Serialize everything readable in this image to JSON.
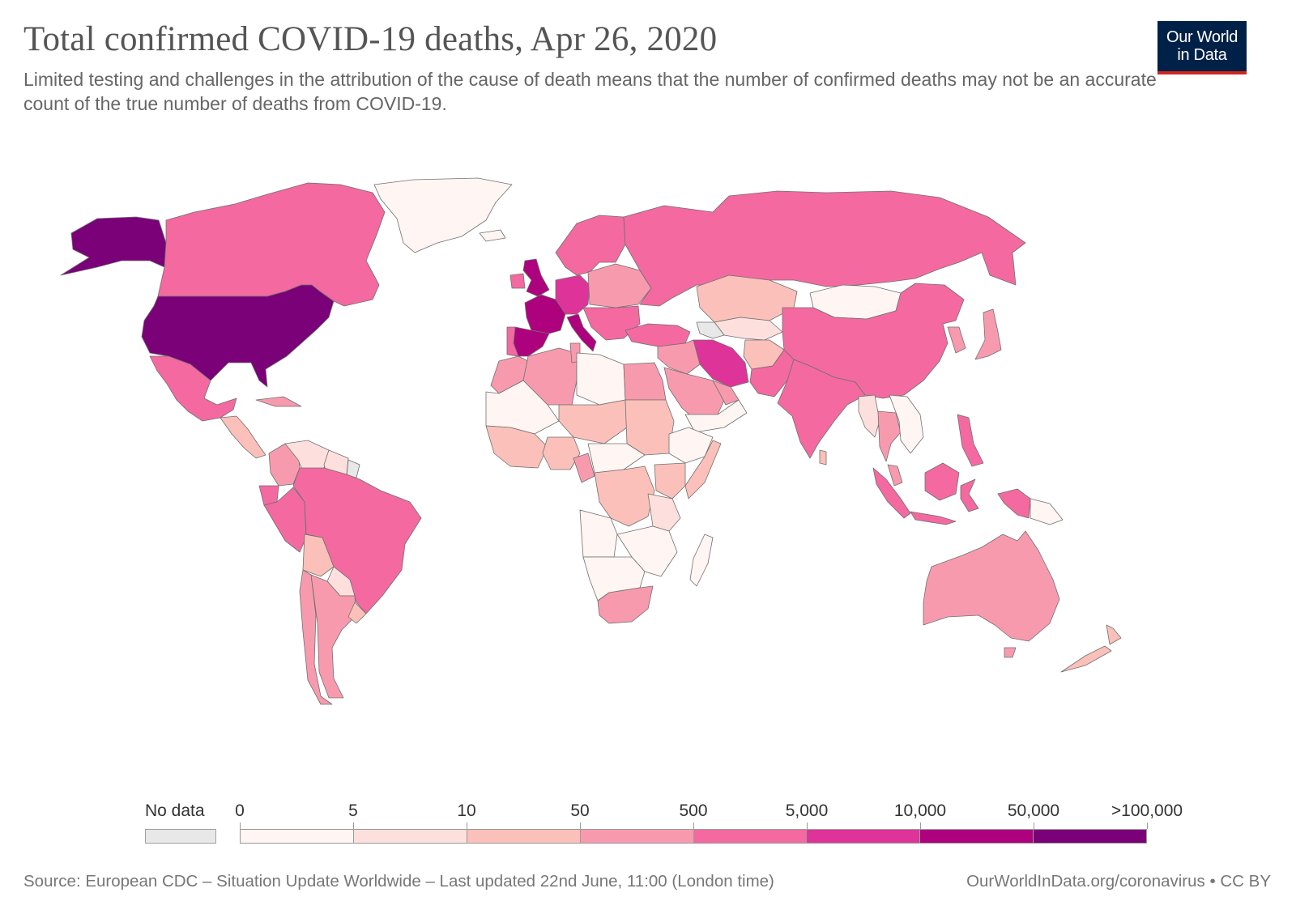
{
  "header": {
    "title": "Total confirmed COVID-19 deaths, Apr 26, 2020",
    "subtitle": "Limited testing and challenges in the attribution of the cause of death means that the number of confirmed deaths may not be an accurate count of the true number of deaths from COVID-19.",
    "logo_line1": "Our World",
    "logo_line2": "in Data"
  },
  "legend": {
    "no_data_label": "No data",
    "no_data_color": "#e8e8e8",
    "ticks": [
      "0",
      "5",
      "10",
      "50",
      "500",
      "5,000",
      "10,000",
      "50,000",
      ">100,000"
    ],
    "bins": [
      {
        "color": "#fff5f2"
      },
      {
        "color": "#fde0dd"
      },
      {
        "color": "#fbc0b9"
      },
      {
        "color": "#f89aae"
      },
      {
        "color": "#f369a0"
      },
      {
        "color": "#de3499"
      },
      {
        "color": "#ae017e"
      },
      {
        "color": "#7a0177"
      }
    ]
  },
  "footer": {
    "source": "Source: European CDC – Situation Update Worldwide – Last updated 22nd June, 11:00 (London time)",
    "credit": "OurWorldInData.org/coronavirus • CC BY"
  },
  "map": {
    "regions": [
      {
        "name": "alaska",
        "bin": 7
      },
      {
        "name": "canada",
        "bin": 4
      },
      {
        "name": "greenland",
        "bin": 0
      },
      {
        "name": "usa",
        "bin": 7
      },
      {
        "name": "mexico",
        "bin": 4
      },
      {
        "name": "central-america",
        "bin": 2
      },
      {
        "name": "cuba",
        "bin": 3
      },
      {
        "name": "colombia",
        "bin": 3
      },
      {
        "name": "venezuela",
        "bin": 1
      },
      {
        "name": "guyana-suriname",
        "bin": 1
      },
      {
        "name": "french-guiana",
        "bin": -1
      },
      {
        "name": "ecuador",
        "bin": 4
      },
      {
        "name": "peru",
        "bin": 4
      },
      {
        "name": "brazil",
        "bin": 4
      },
      {
        "name": "bolivia",
        "bin": 2
      },
      {
        "name": "paraguay",
        "bin": 1
      },
      {
        "name": "chile",
        "bin": 3
      },
      {
        "name": "argentina",
        "bin": 3
      },
      {
        "name": "uruguay",
        "bin": 2
      },
      {
        "name": "iceland",
        "bin": 0
      },
      {
        "name": "uk",
        "bin": 6
      },
      {
        "name": "ireland",
        "bin": 4
      },
      {
        "name": "scandinavia",
        "bin": 4
      },
      {
        "name": "france",
        "bin": 6
      },
      {
        "name": "spain",
        "bin": 6
      },
      {
        "name": "portugal",
        "bin": 4
      },
      {
        "name": "italy",
        "bin": 6
      },
      {
        "name": "germany-benelux",
        "bin": 5
      },
      {
        "name": "central-eastern-europe",
        "bin": 3
      },
      {
        "name": "balkans",
        "bin": 4
      },
      {
        "name": "russia",
        "bin": 4
      },
      {
        "name": "turkey",
        "bin": 4
      },
      {
        "name": "kazakhstan",
        "bin": 2
      },
      {
        "name": "central-asia",
        "bin": 1
      },
      {
        "name": "caucasus",
        "bin": -1
      },
      {
        "name": "iran",
        "bin": 5
      },
      {
        "name": "iraq-syria",
        "bin": 3
      },
      {
        "name": "saudi-arabia",
        "bin": 3
      },
      {
        "name": "gulf",
        "bin": 3
      },
      {
        "name": "yemen-oman",
        "bin": 0
      },
      {
        "name": "afghanistan",
        "bin": 2
      },
      {
        "name": "pakistan",
        "bin": 4
      },
      {
        "name": "india",
        "bin": 4
      },
      {
        "name": "sri-lanka",
        "bin": 2
      },
      {
        "name": "mongolia",
        "bin": 0
      },
      {
        "name": "china",
        "bin": 4
      },
      {
        "name": "korea",
        "bin": 3
      },
      {
        "name": "japan",
        "bin": 3
      },
      {
        "name": "myanmar",
        "bin": 1
      },
      {
        "name": "thailand",
        "bin": 3
      },
      {
        "name": "indochina",
        "bin": 0
      },
      {
        "name": "malaysia",
        "bin": 3
      },
      {
        "name": "philippines",
        "bin": 4
      },
      {
        "name": "sumatra",
        "bin": 4
      },
      {
        "name": "java",
        "bin": 4
      },
      {
        "name": "borneo",
        "bin": 4
      },
      {
        "name": "sulawesi",
        "bin": 4
      },
      {
        "name": "new-guinea",
        "bin": 4
      },
      {
        "name": "papua-new-guinea",
        "bin": 0
      },
      {
        "name": "australia",
        "bin": 3
      },
      {
        "name": "tasmania",
        "bin": 3
      },
      {
        "name": "new-zealand-north",
        "bin": 2
      },
      {
        "name": "new-zealand-south",
        "bin": 2
      },
      {
        "name": "morocco",
        "bin": 3
      },
      {
        "name": "algeria",
        "bin": 3
      },
      {
        "name": "tunisia",
        "bin": 3
      },
      {
        "name": "libya",
        "bin": 0
      },
      {
        "name": "egypt",
        "bin": 3
      },
      {
        "name": "mauritania-mali",
        "bin": 0
      },
      {
        "name": "niger-chad",
        "bin": 2
      },
      {
        "name": "sudan",
        "bin": 2
      },
      {
        "name": "west-africa-coast",
        "bin": 2
      },
      {
        "name": "nigeria",
        "bin": 2
      },
      {
        "name": "cameroon",
        "bin": 3
      },
      {
        "name": "central-african-republic",
        "bin": 0
      },
      {
        "name": "ethiopia",
        "bin": 0
      },
      {
        "name": "somalia",
        "bin": 2
      },
      {
        "name": "dr-congo",
        "bin": 2
      },
      {
        "name": "kenya",
        "bin": 2
      },
      {
        "name": "tanzania",
        "bin": 1
      },
      {
        "name": "angola",
        "bin": 0
      },
      {
        "name": "zambia-mozambique",
        "bin": 0
      },
      {
        "name": "namibia-botswana",
        "bin": 0
      },
      {
        "name": "south-africa",
        "bin": 3
      },
      {
        "name": "madagascar",
        "bin": 0
      }
    ]
  }
}
